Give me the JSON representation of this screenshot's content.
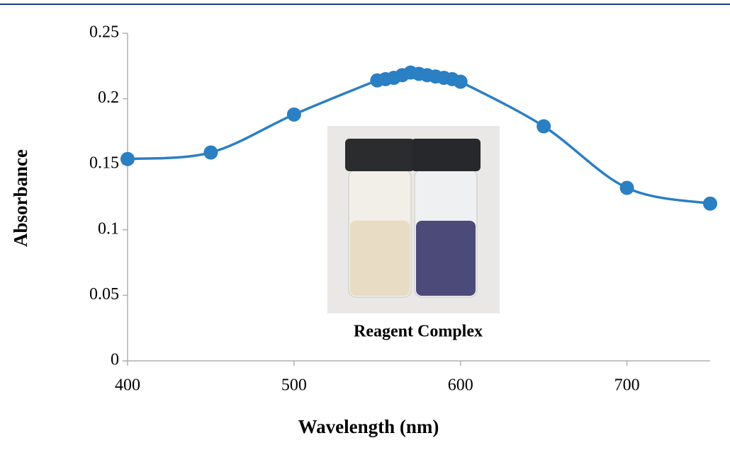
{
  "chart_data": {
    "type": "line",
    "x": [
      400,
      450,
      500,
      550,
      555,
      560,
      565,
      570,
      575,
      580,
      585,
      590,
      595,
      600,
      650,
      700,
      750
    ],
    "series": [
      {
        "color": "#2b7fc3",
        "values": [
          0.154,
          0.159,
          0.188,
          0.214,
          0.215,
          0.216,
          0.218,
          0.22,
          0.219,
          0.218,
          0.217,
          0.216,
          0.215,
          0.213,
          0.179,
          0.132,
          0.12
        ]
      }
    ],
    "xlim": [
      400,
      750
    ],
    "xticks": [
      400,
      500,
      600,
      700
    ],
    "ylim": [
      0,
      0.25
    ],
    "yticks": [
      0,
      0.05,
      0.1,
      0.15,
      0.2,
      0.25
    ],
    "xlabel": "Wavelength (nm)",
    "ylabel": "Absorbance",
    "inset_caption": "Reagent Complex"
  }
}
